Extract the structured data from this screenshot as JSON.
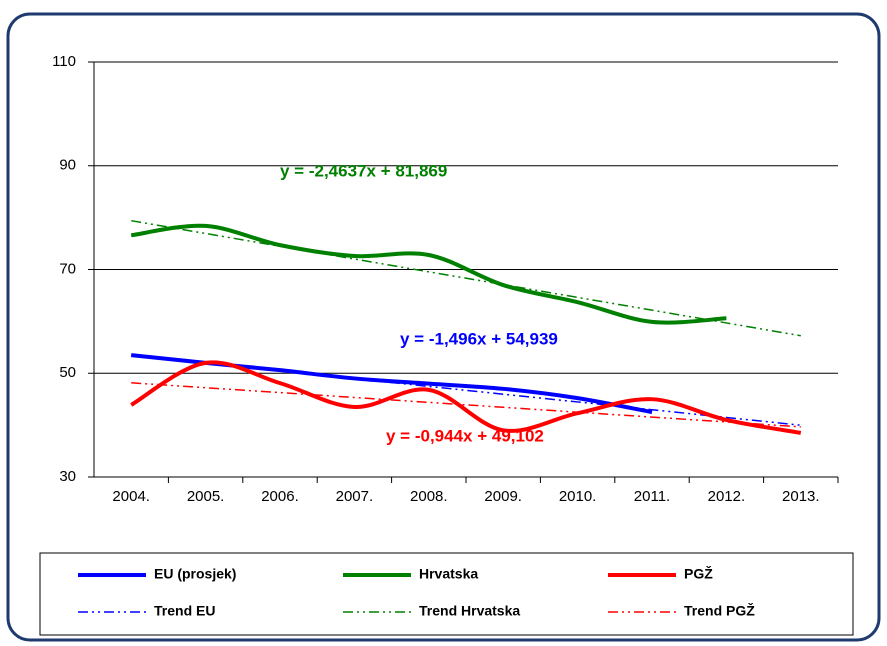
{
  "chart_data": {
    "type": "line",
    "categories": [
      "2004.",
      "2005.",
      "2006.",
      "2007.",
      "2008.",
      "2009.",
      "2010.",
      "2011.",
      "2012.",
      "2013."
    ],
    "ylim": [
      30,
      110
    ],
    "yticks": [
      30,
      50,
      70,
      90,
      110
    ],
    "grid": true,
    "series": [
      {
        "name": "EU (prosjek)",
        "color": "#0000ff",
        "style": "solid",
        "values": [
          53.5,
          52,
          50.6,
          49,
          48,
          47,
          45.2,
          42.5,
          null,
          null
        ]
      },
      {
        "name": "Hrvatska",
        "color": "#008000",
        "style": "solid",
        "values": [
          76.6,
          78.4,
          74.7,
          72.6,
          72.8,
          67,
          63.7,
          59.9,
          60.6,
          null
        ]
      },
      {
        "name": "PGŽ",
        "color": "#ff0000",
        "style": "solid",
        "values": [
          43.9,
          52,
          48.1,
          43.5,
          46.8,
          39,
          42.3,
          45,
          41,
          38.5
        ]
      },
      {
        "name": "Trend EU",
        "color": "#0000ff",
        "style": "dash-dot",
        "values": [
          53.44,
          51.95,
          50.45,
          48.96,
          47.46,
          45.96,
          44.47,
          42.97,
          41.48,
          39.98
        ]
      },
      {
        "name": "Trend Hrvatska",
        "color": "#008000",
        "style": "dash-dot",
        "values": [
          79.41,
          76.94,
          74.48,
          72.02,
          69.55,
          67.09,
          64.62,
          62.16,
          59.7,
          57.23
        ]
      },
      {
        "name": "Trend PGŽ",
        "color": "#ff0000",
        "style": "dash-dot",
        "values": [
          48.16,
          47.21,
          46.27,
          45.33,
          44.38,
          43.44,
          42.49,
          41.55,
          40.61,
          39.66
        ]
      }
    ],
    "annotations": [
      {
        "text": "y = -2,4637x + 81,869",
        "color": "#008000"
      },
      {
        "text": "y = -1,496x + 54,939",
        "color": "#0000ff"
      },
      {
        "text": "y = -0,944x + 49,102",
        "color": "#ff0000"
      }
    ]
  }
}
